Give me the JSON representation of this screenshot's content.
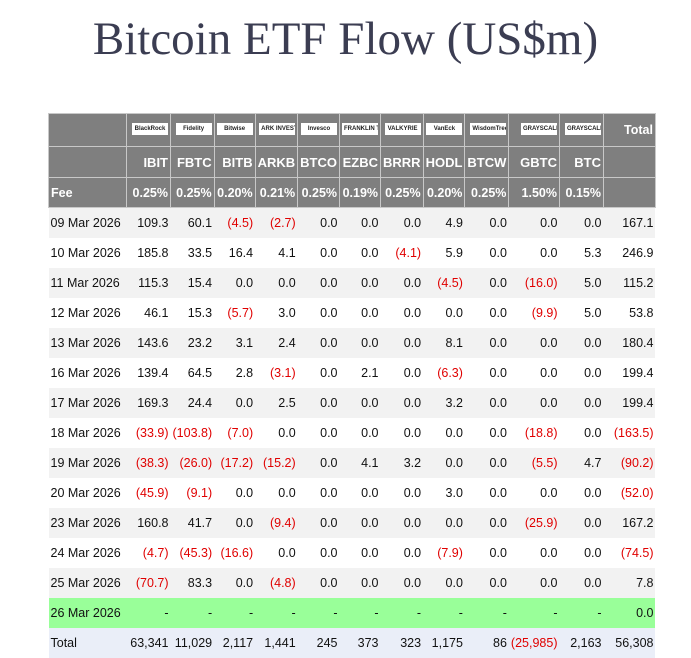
{
  "title": "Bitcoin ETF Flow (US$m)",
  "logos": [
    "BlackRock",
    "Fidelity",
    "Bitwise",
    "ARK INVEST",
    "Invesco",
    "FRANKLIN TEMPLETON",
    "VALKYRIE",
    "VanEck",
    "WisdomTree",
    "GRAYSCALE",
    "GRAYSCALE"
  ],
  "total_header": "Total",
  "tickers": [
    "IBIT",
    "FBTC",
    "BITB",
    "ARKB",
    "BTCO",
    "EZBC",
    "BRRR",
    "HODL",
    "BTCW",
    "GBTC",
    "BTC"
  ],
  "fee_label": "Fee",
  "fees": [
    "0.25%",
    "0.25%",
    "0.20%",
    "0.21%",
    "0.25%",
    "0.19%",
    "0.25%",
    "0.20%",
    "0.25%",
    "1.50%",
    "0.15%"
  ],
  "colors": {
    "negative": "#e00000",
    "header": "#7f7f7f",
    "today": "#99ff99"
  },
  "rows": [
    {
      "date": "09 Mar 2026",
      "values": [
        "109.3",
        "60.1",
        "(4.5)",
        "(2.7)",
        "0.0",
        "0.0",
        "0.0",
        "4.9",
        "0.0",
        "0.0",
        "0.0",
        "167.1"
      ]
    },
    {
      "date": "10 Mar 2026",
      "values": [
        "185.8",
        "33.5",
        "16.4",
        "4.1",
        "0.0",
        "0.0",
        "(4.1)",
        "5.9",
        "0.0",
        "0.0",
        "5.3",
        "246.9"
      ]
    },
    {
      "date": "11 Mar 2026",
      "values": [
        "115.3",
        "15.4",
        "0.0",
        "0.0",
        "0.0",
        "0.0",
        "0.0",
        "(4.5)",
        "0.0",
        "(16.0)",
        "5.0",
        "115.2"
      ]
    },
    {
      "date": "12 Mar 2026",
      "values": [
        "46.1",
        "15.3",
        "(5.7)",
        "3.0",
        "0.0",
        "0.0",
        "0.0",
        "0.0",
        "0.0",
        "(9.9)",
        "5.0",
        "53.8"
      ]
    },
    {
      "date": "13 Mar 2026",
      "values": [
        "143.6",
        "23.2",
        "3.1",
        "2.4",
        "0.0",
        "0.0",
        "0.0",
        "8.1",
        "0.0",
        "0.0",
        "0.0",
        "180.4"
      ]
    },
    {
      "date": "16 Mar 2026",
      "values": [
        "139.4",
        "64.5",
        "2.8",
        "(3.1)",
        "0.0",
        "2.1",
        "0.0",
        "(6.3)",
        "0.0",
        "0.0",
        "0.0",
        "199.4"
      ]
    },
    {
      "date": "17 Mar 2026",
      "values": [
        "169.3",
        "24.4",
        "0.0",
        "2.5",
        "0.0",
        "0.0",
        "0.0",
        "3.2",
        "0.0",
        "0.0",
        "0.0",
        "199.4"
      ]
    },
    {
      "date": "18 Mar 2026",
      "values": [
        "(33.9)",
        "(103.8)",
        "(7.0)",
        "0.0",
        "0.0",
        "0.0",
        "0.0",
        "0.0",
        "0.0",
        "(18.8)",
        "0.0",
        "(163.5)"
      ]
    },
    {
      "date": "19 Mar 2026",
      "values": [
        "(38.3)",
        "(26.0)",
        "(17.2)",
        "(15.2)",
        "0.0",
        "4.1",
        "3.2",
        "0.0",
        "0.0",
        "(5.5)",
        "4.7",
        "(90.2)"
      ]
    },
    {
      "date": "20 Mar 2026",
      "values": [
        "(45.9)",
        "(9.1)",
        "0.0",
        "0.0",
        "0.0",
        "0.0",
        "0.0",
        "3.0",
        "0.0",
        "0.0",
        "0.0",
        "(52.0)"
      ]
    },
    {
      "date": "23 Mar 2026",
      "values": [
        "160.8",
        "41.7",
        "0.0",
        "(9.4)",
        "0.0",
        "0.0",
        "0.0",
        "0.0",
        "0.0",
        "(25.9)",
        "0.0",
        "167.2"
      ]
    },
    {
      "date": "24 Mar 2026",
      "values": [
        "(4.7)",
        "(45.3)",
        "(16.6)",
        "0.0",
        "0.0",
        "0.0",
        "0.0",
        "(7.9)",
        "0.0",
        "0.0",
        "0.0",
        "(74.5)"
      ]
    },
    {
      "date": "25 Mar 2026",
      "values": [
        "(70.7)",
        "83.3",
        "0.0",
        "(4.8)",
        "0.0",
        "0.0",
        "0.0",
        "0.0",
        "0.0",
        "0.0",
        "0.0",
        "7.8"
      ]
    },
    {
      "date": "26 Mar 2026",
      "today": true,
      "values": [
        "-",
        "-",
        "-",
        "-",
        "-",
        "-",
        "-",
        "-",
        "-",
        "-",
        "-",
        "0.0"
      ]
    }
  ],
  "total": {
    "label": "Total",
    "values": [
      "63,341",
      "11,029",
      "2,117",
      "1,441",
      "245",
      "373",
      "323",
      "1,175",
      "86",
      "(25,985)",
      "2,163",
      "56,308"
    ]
  }
}
